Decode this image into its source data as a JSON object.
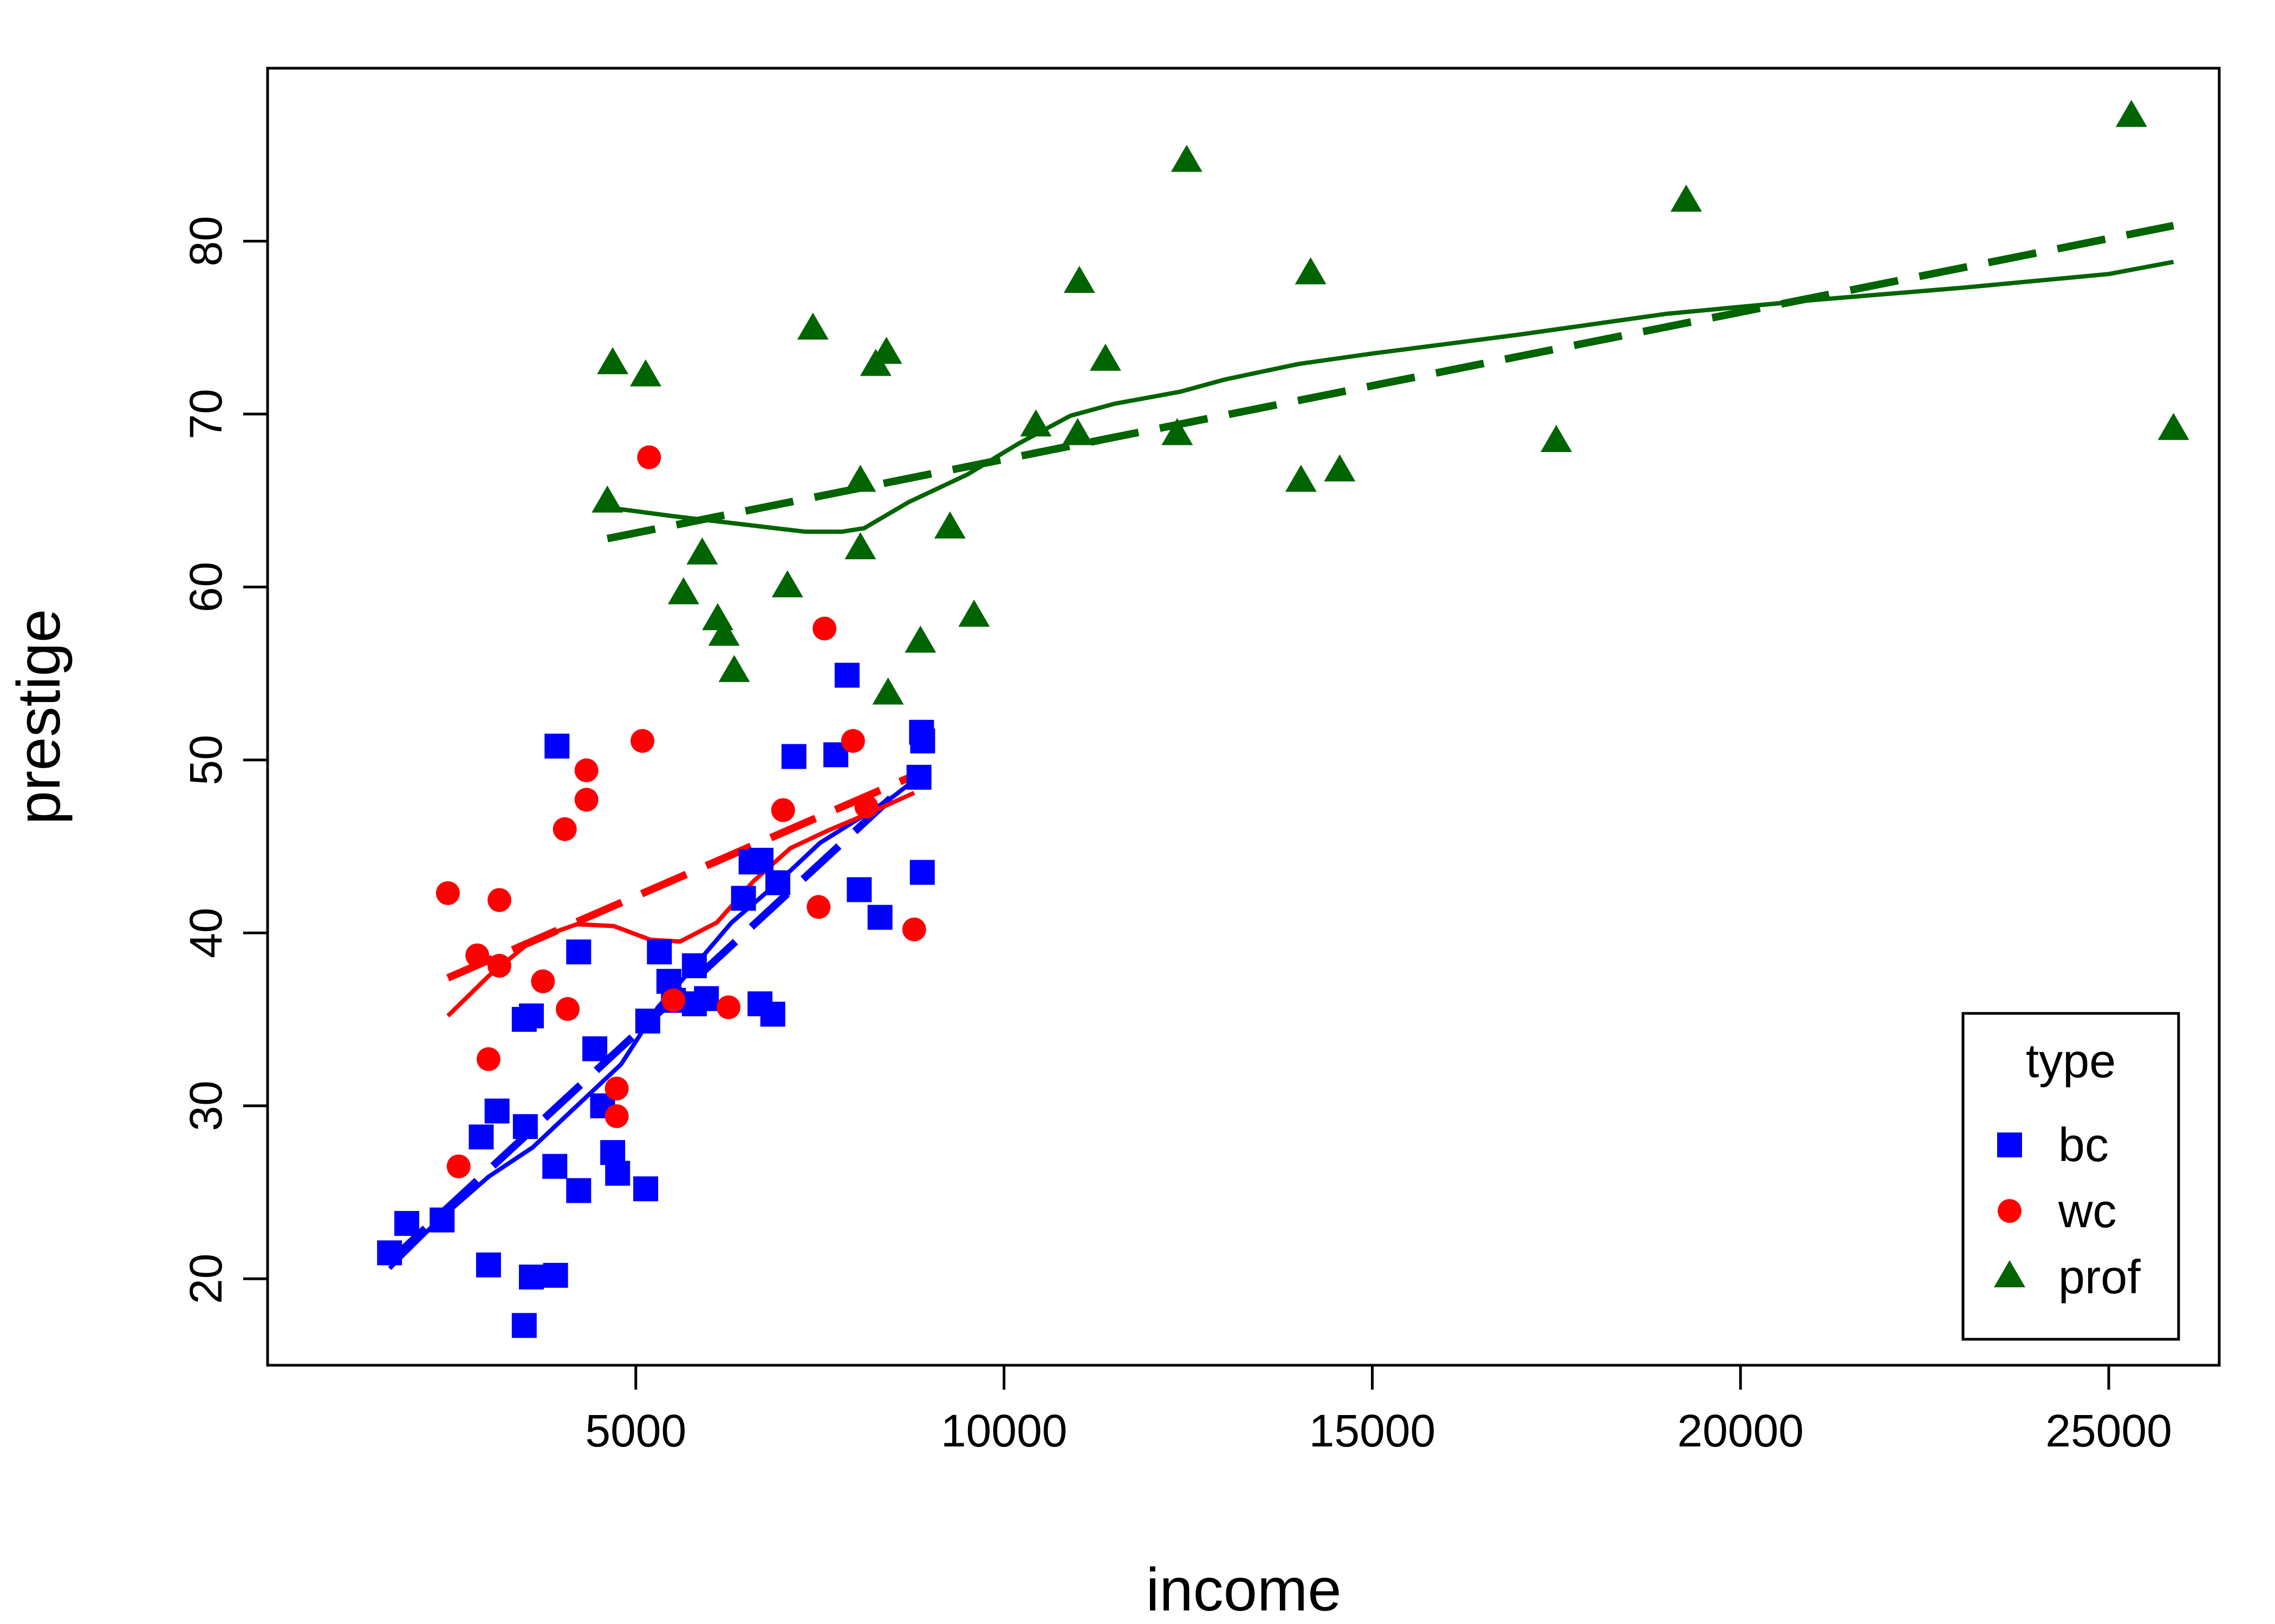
{
  "chart_data": {
    "type": "scatter",
    "xlabel": "income",
    "ylabel": "prestige",
    "xlim": [
      0,
      26500
    ],
    "ylim": [
      15,
      90
    ],
    "xticks": [
      5000,
      10000,
      15000,
      20000,
      25000
    ],
    "yticks": [
      20,
      30,
      40,
      50,
      60,
      70,
      80
    ],
    "xtick_labels": [
      "5000",
      "10000",
      "15000",
      "20000",
      "25000"
    ],
    "ytick_labels": [
      "20",
      "30",
      "40",
      "50",
      "60",
      "70",
      "80"
    ],
    "grid": false,
    "legend": {
      "title": "type",
      "position": "bottom-right",
      "entries": [
        "bc",
        "wc",
        "prof"
      ]
    },
    "series": [
      {
        "name": "bc",
        "color": "#0000ff",
        "marker": "square",
        "points": [
          [
            1656,
            21.5
          ],
          [
            1890,
            23.2
          ],
          [
            2370,
            23.4
          ],
          [
            2901,
            28.2
          ],
          [
            3000,
            20.8
          ],
          [
            3116,
            29.7
          ],
          [
            3485,
            17.3
          ],
          [
            3485,
            35.0
          ],
          [
            3500,
            28.8
          ],
          [
            3582,
            20.1
          ],
          [
            3582,
            35.2
          ],
          [
            3900,
            26.5
          ],
          [
            3910,
            20.2
          ],
          [
            3930,
            50.8
          ],
          [
            4224,
            38.9
          ],
          [
            4224,
            25.1
          ],
          [
            4443,
            33.3
          ],
          [
            4549,
            30.0
          ],
          [
            4686,
            27.3
          ],
          [
            4753,
            26.1
          ],
          [
            5134,
            25.2
          ],
          [
            5162,
            34.9
          ],
          [
            5320,
            38.9
          ],
          [
            5449,
            37.2
          ],
          [
            5511,
            36.1
          ],
          [
            5795,
            38.1
          ],
          [
            5795,
            35.9
          ],
          [
            5959,
            36.2
          ],
          [
            6462,
            42.0
          ],
          [
            6565,
            44.1
          ],
          [
            6686,
            35.9
          ],
          [
            6700,
            44.2
          ],
          [
            6860,
            35.3
          ],
          [
            6928,
            42.9
          ],
          [
            7147,
            50.2
          ],
          [
            7716,
            50.3
          ],
          [
            7869,
            54.9
          ],
          [
            8034,
            42.5
          ],
          [
            8316,
            40.9
          ],
          [
            8845,
            49.0
          ],
          [
            8880,
            51.6
          ],
          [
            8895,
            51.1
          ],
          [
            8890,
            43.5
          ]
        ],
        "fit_linear": [
          [
            1656,
            21.0
          ],
          [
            8895,
            49.5
          ]
        ],
        "fit_smooth": [
          [
            1656,
            20.6
          ],
          [
            2300,
            23.3
          ],
          [
            3000,
            25.9
          ],
          [
            3600,
            27.6
          ],
          [
            4200,
            30.0
          ],
          [
            4800,
            32.4
          ],
          [
            5300,
            35.7
          ],
          [
            5800,
            38.1
          ],
          [
            6300,
            40.6
          ],
          [
            6900,
            42.8
          ],
          [
            7500,
            45.2
          ],
          [
            8100,
            46.8
          ],
          [
            8500,
            47.9
          ],
          [
            8895,
            49.2
          ]
        ]
      },
      {
        "name": "wc",
        "color": "#ff0000",
        "marker": "circle",
        "points": [
          [
            2448,
            42.3
          ],
          [
            2594,
            26.5
          ],
          [
            2847,
            38.7
          ],
          [
            3000,
            32.7
          ],
          [
            3148,
            41.9
          ],
          [
            3148,
            38.1
          ],
          [
            3739,
            37.2
          ],
          [
            4036,
            46.0
          ],
          [
            4075,
            35.6
          ],
          [
            4330,
            49.4
          ],
          [
            4330,
            47.7
          ],
          [
            4741,
            31.0
          ],
          [
            4741,
            29.4
          ],
          [
            5090,
            51.1
          ],
          [
            5180,
            67.5
          ],
          [
            5511,
            36.1
          ],
          [
            6259,
            35.7
          ],
          [
            7000,
            47.1
          ],
          [
            7482,
            41.5
          ],
          [
            7562,
            57.6
          ],
          [
            7950,
            51.1
          ],
          [
            8131,
            47.3
          ],
          [
            8780,
            40.2
          ]
        ],
        "fit_linear": [
          [
            2448,
            37.4
          ],
          [
            8780,
            49.1
          ]
        ],
        "fit_smooth": [
          [
            2448,
            35.2
          ],
          [
            3000,
            37.5
          ],
          [
            3600,
            39.6
          ],
          [
            4200,
            40.5
          ],
          [
            4700,
            40.4
          ],
          [
            5200,
            39.6
          ],
          [
            5600,
            39.5
          ],
          [
            6100,
            40.6
          ],
          [
            6600,
            43.0
          ],
          [
            7100,
            44.9
          ],
          [
            7600,
            45.9
          ],
          [
            8100,
            46.8
          ],
          [
            8780,
            48.1
          ]
        ]
      },
      {
        "name": "prof",
        "color": "#006400",
        "marker": "triangle",
        "points": [
          [
            4614,
            64.9
          ],
          [
            4686,
            72.9
          ],
          [
            5134,
            72.2
          ],
          [
            5648,
            59.6
          ],
          [
            5902,
            61.9
          ],
          [
            6112,
            58.1
          ],
          [
            6197,
            57.2
          ],
          [
            6336,
            55.1
          ],
          [
            7059,
            60.0
          ],
          [
            7405,
            74.9
          ],
          [
            8049,
            66.1
          ],
          [
            8049,
            62.2
          ],
          [
            8258,
            72.8
          ],
          [
            8403,
            73.5
          ],
          [
            8425,
            53.8
          ],
          [
            8865,
            56.8
          ],
          [
            9266,
            63.4
          ],
          [
            9593,
            58.3
          ],
          [
            10432,
            69.3
          ],
          [
            11000,
            68.8
          ],
          [
            11023,
            77.6
          ],
          [
            11377,
            73.1
          ],
          [
            12351,
            68.8
          ],
          [
            12480,
            84.6
          ],
          [
            14032,
            66.1
          ],
          [
            14163,
            78.1
          ],
          [
            14558,
            66.7
          ],
          [
            17498,
            68.4
          ],
          [
            19263,
            82.3
          ],
          [
            25308,
            87.2
          ],
          [
            25879,
            69.1
          ]
        ],
        "fit_linear": [
          [
            4614,
            62.8
          ],
          [
            25879,
            80.9
          ]
        ],
        "fit_smooth": [
          [
            4614,
            64.6
          ],
          [
            5500,
            64.1
          ],
          [
            6500,
            63.6
          ],
          [
            7300,
            63.2
          ],
          [
            7800,
            63.2
          ],
          [
            8100,
            63.4
          ],
          [
            8700,
            64.9
          ],
          [
            9500,
            66.5
          ],
          [
            10200,
            68.3
          ],
          [
            10900,
            69.9
          ],
          [
            11500,
            70.6
          ],
          [
            12400,
            71.3
          ],
          [
            13000,
            72.0
          ],
          [
            14000,
            72.9
          ],
          [
            15000,
            73.5
          ],
          [
            17000,
            74.6
          ],
          [
            19000,
            75.8
          ],
          [
            21000,
            76.6
          ],
          [
            23000,
            77.3
          ],
          [
            25000,
            78.1
          ],
          [
            25879,
            78.8
          ]
        ]
      }
    ]
  }
}
